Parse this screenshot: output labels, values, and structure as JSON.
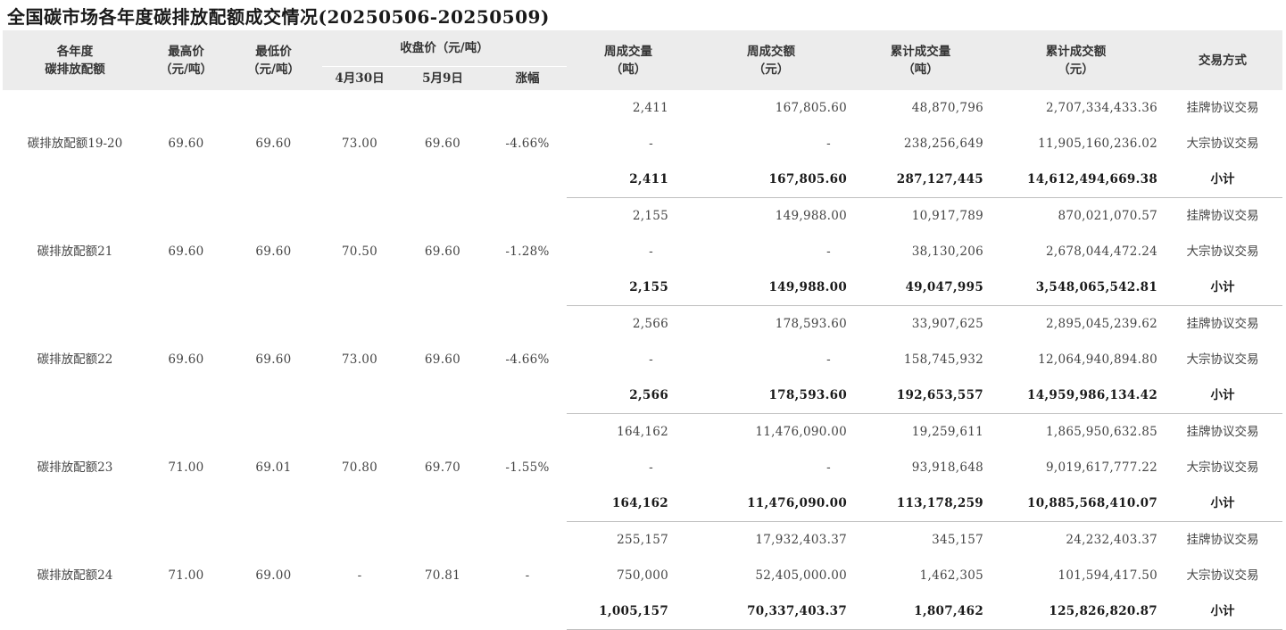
{
  "title": "全国碳市场各年度碳排放配额成交情况(20250506-20250509)",
  "headers": {
    "year_allowance": [
      "各年度",
      "碳排放配额"
    ],
    "high_price": [
      "最高价",
      "（元/吨）"
    ],
    "low_price": [
      "最低价",
      "（元/吨）"
    ],
    "close_price": "收盘价（元/吨）",
    "close_apr30": "4月30日",
    "close_may9": "5月9日",
    "change": "涨幅",
    "week_volume": [
      "周成交量",
      "（吨）"
    ],
    "week_amount": [
      "周成交额",
      "（元）"
    ],
    "cum_volume": [
      "累计成交量",
      "（吨）"
    ],
    "cum_amount": [
      "累计成交额",
      "（元）"
    ],
    "trade_method": "交易方式"
  },
  "groups": [
    {
      "name": "碳排放配额19-20",
      "high": "69.60",
      "low": "69.60",
      "apr30": "73.00",
      "may9": "69.60",
      "change": "-4.66%",
      "rows": [
        {
          "week_vol": "2,411",
          "week_amt": "167,805.60",
          "cum_vol": "48,870,796",
          "cum_amt": "2,707,334,433.36",
          "method": "挂牌协议交易"
        },
        {
          "week_vol": "-",
          "week_amt": "-",
          "cum_vol": "238,256,649",
          "cum_amt": "11,905,160,236.02",
          "method": "大宗协议交易"
        },
        {
          "week_vol": "2,411",
          "week_amt": "167,805.60",
          "cum_vol": "287,127,445",
          "cum_amt": "14,612,494,669.38",
          "method": "小计"
        }
      ]
    },
    {
      "name": "碳排放配额21",
      "high": "69.60",
      "low": "69.60",
      "apr30": "70.50",
      "may9": "69.60",
      "change": "-1.28%",
      "rows": [
        {
          "week_vol": "2,155",
          "week_amt": "149,988.00",
          "cum_vol": "10,917,789",
          "cum_amt": "870,021,070.57",
          "method": "挂牌协议交易"
        },
        {
          "week_vol": "-",
          "week_amt": "-",
          "cum_vol": "38,130,206",
          "cum_amt": "2,678,044,472.24",
          "method": "大宗协议交易"
        },
        {
          "week_vol": "2,155",
          "week_amt": "149,988.00",
          "cum_vol": "49,047,995",
          "cum_amt": "3,548,065,542.81",
          "method": "小计"
        }
      ]
    },
    {
      "name": "碳排放配额22",
      "high": "69.60",
      "low": "69.60",
      "apr30": "73.00",
      "may9": "69.60",
      "change": "-4.66%",
      "rows": [
        {
          "week_vol": "2,566",
          "week_amt": "178,593.60",
          "cum_vol": "33,907,625",
          "cum_amt": "2,895,045,239.62",
          "method": "挂牌协议交易"
        },
        {
          "week_vol": "-",
          "week_amt": "-",
          "cum_vol": "158,745,932",
          "cum_amt": "12,064,940,894.80",
          "method": "大宗协议交易"
        },
        {
          "week_vol": "2,566",
          "week_amt": "178,593.60",
          "cum_vol": "192,653,557",
          "cum_amt": "14,959,986,134.42",
          "method": "小计"
        }
      ]
    },
    {
      "name": "碳排放配额23",
      "high": "71.00",
      "low": "69.01",
      "apr30": "70.80",
      "may9": "69.70",
      "change": "-1.55%",
      "rows": [
        {
          "week_vol": "164,162",
          "week_amt": "11,476,090.00",
          "cum_vol": "19,259,611",
          "cum_amt": "1,865,950,632.85",
          "method": "挂牌协议交易"
        },
        {
          "week_vol": "-",
          "week_amt": "-",
          "cum_vol": "93,918,648",
          "cum_amt": "9,019,617,777.22",
          "method": "大宗协议交易"
        },
        {
          "week_vol": "164,162",
          "week_amt": "11,476,090.00",
          "cum_vol": "113,178,259",
          "cum_amt": "10,885,568,410.07",
          "method": "小计"
        }
      ]
    },
    {
      "name": "碳排放配额24",
      "high": "71.00",
      "low": "69.00",
      "apr30": "-",
      "may9": "70.81",
      "change": "-",
      "rows": [
        {
          "week_vol": "255,157",
          "week_amt": "17,932,403.37",
          "cum_vol": "345,157",
          "cum_amt": "24,232,403.37",
          "method": "挂牌协议交易"
        },
        {
          "week_vol": "750,000",
          "week_amt": "52,405,000.00",
          "cum_vol": "1,462,305",
          "cum_amt": "101,594,417.50",
          "method": "大宗协议交易"
        },
        {
          "week_vol": "1,005,157",
          "week_amt": "70,337,403.37",
          "cum_vol": "1,807,462",
          "cum_amt": "125,826,820.87",
          "method": "小计"
        }
      ]
    }
  ]
}
